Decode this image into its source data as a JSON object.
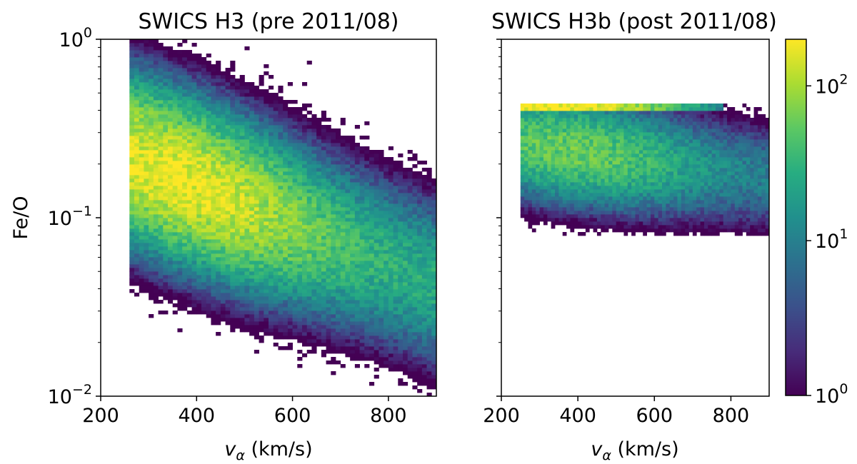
{
  "colors": {
    "colormap": [
      "#440154",
      "#472c7a",
      "#3b518b",
      "#2c718e",
      "#21908d",
      "#27ad81",
      "#5cc863",
      "#aadc32",
      "#fde725"
    ],
    "axis": "#000000",
    "background": "#ffffff"
  },
  "chart_data": [
    {
      "type": "heatmap",
      "title": "SWICS H3 (pre 2011/08)",
      "xlabel_main": "v",
      "xlabel_sub": "α",
      "xlabel_unit": " (km/s)",
      "ylabel": "Fe/O",
      "xlim": [
        200,
        900
      ],
      "ylim": [
        0.01,
        1
      ],
      "yscale": "log",
      "x_ticks": [
        200,
        400,
        600,
        800
      ],
      "x_tick_labels": [
        "200",
        "400",
        "600",
        "800"
      ],
      "y_ticks": [
        0.01,
        0.1,
        1
      ],
      "y_tick_labels": [
        {
          "base": "10",
          "exp": "−2"
        },
        {
          "base": "10",
          "exp": "−1"
        },
        {
          "base": "10",
          "exp": "0"
        }
      ],
      "density_model": {
        "v_range": [
          265,
          900
        ],
        "logy_range": [
          -2.0,
          0.0
        ],
        "ridge": {
          "v0": 360,
          "logy0": -0.77,
          "slope_per_100kms": -0.11
        },
        "spread_logy": 0.3,
        "peak_counts": 180
      }
    },
    {
      "type": "heatmap",
      "title": "SWICS H3b (post 2011/08)",
      "xlabel_main": "v",
      "xlabel_sub": "α",
      "xlabel_unit": " (km/s)",
      "xlim": [
        200,
        900
      ],
      "ylim": [
        0.01,
        1
      ],
      "yscale": "log",
      "x_ticks": [
        200,
        400,
        600,
        800
      ],
      "x_tick_labels": [
        "200",
        "400",
        "600",
        "800"
      ],
      "y_ticks": [
        0.01,
        0.1,
        1
      ],
      "show_y_tick_labels": false,
      "density_model": {
        "v_range": [
          250,
          900
        ],
        "logy_range": [
          -1.1,
          -0.36
        ],
        "upper_cap_logy": -0.37,
        "upper_cap_counts": 200,
        "ridge": {
          "v0": 380,
          "logy0": -0.62,
          "slope_per_100kms": -0.03
        },
        "spread_logy": 0.2,
        "peak_counts": 60
      }
    }
  ],
  "colorbar": {
    "scale": "log",
    "range": [
      1,
      200
    ],
    "ticks": [
      1,
      10,
      100
    ],
    "tick_labels": [
      {
        "base": "10",
        "exp": "0"
      },
      {
        "base": "10",
        "exp": "1"
      },
      {
        "base": "10",
        "exp": "2"
      }
    ]
  }
}
